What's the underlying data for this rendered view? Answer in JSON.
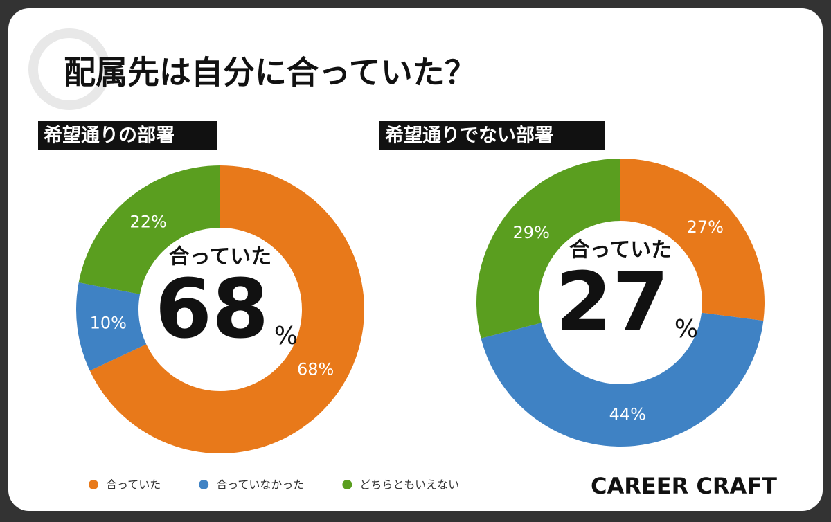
{
  "title": "配属先は自分に合っていた？",
  "brand": "CAREER CRAFT",
  "chart_data": [
    {
      "type": "donut",
      "subtitle": "希望通りの部署",
      "categories": [
        "合っていた",
        "合っていなかった",
        "どちらともいえない"
      ],
      "values": [
        68,
        10,
        22
      ],
      "value_labels": [
        "68%",
        "10%",
        "22%"
      ],
      "colors": [
        "#e8791a",
        "#3f82c4",
        "#5a9e1f"
      ],
      "center_label": "合っていた",
      "center_value": 68,
      "center_unit": "%"
    },
    {
      "type": "donut",
      "subtitle": "希望通りでない部署",
      "categories": [
        "合っていた",
        "合っていなかった",
        "どちらともいえない"
      ],
      "values": [
        27,
        44,
        29
      ],
      "value_labels": [
        "27%",
        "44%",
        "29%"
      ],
      "colors": [
        "#e8791a",
        "#3f82c4",
        "#5a9e1f"
      ],
      "center_label": "合っていた",
      "center_value": 27,
      "center_unit": "%"
    }
  ]
}
